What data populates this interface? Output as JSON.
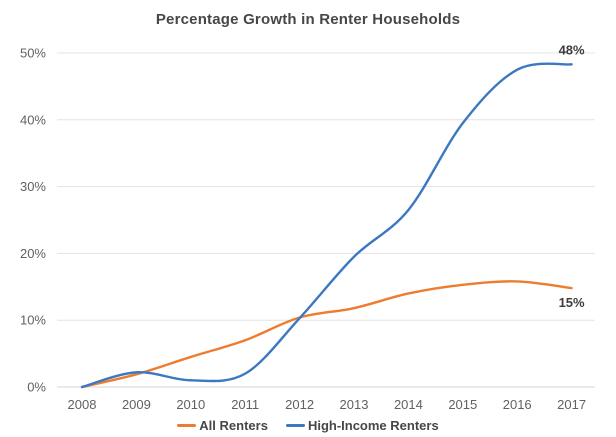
{
  "title": "Percentage Growth in Renter Households",
  "colors": {
    "all_renters": "#ED7C31",
    "high_income_renters": "#3B78C2",
    "gridline": "#E3E3E3",
    "axis_line": "#D6D6D6",
    "title_text": "#474747",
    "tick_text": "#616161",
    "data_label_text": "#3D3D3D",
    "background": "#FFFFFF"
  },
  "chart_data": {
    "type": "line",
    "title": "Percentage Growth in Renter Households",
    "x": [
      2008,
      2009,
      2010,
      2011,
      2012,
      2013,
      2014,
      2015,
      2016,
      2017
    ],
    "series": [
      {
        "name": "All Renters",
        "color": "#ED7C31",
        "values": [
          0,
          1.9,
          4.5,
          7,
          10.4,
          11.8,
          14,
          15.3,
          15.8,
          14.8
        ],
        "end_label": "15%",
        "end_label_position": "below"
      },
      {
        "name": "High-Income Renters",
        "color": "#3B78C2",
        "values": [
          0,
          2.2,
          1,
          2,
          10.3,
          19.5,
          26.5,
          39.5,
          47.5,
          48.3
        ],
        "end_label": "48%",
        "end_label_position": "above"
      }
    ],
    "xlabel": "",
    "ylabel": "",
    "ylim": [
      0,
      50
    ],
    "y_tick_interval": 10,
    "y_tick_labels": [
      "0%",
      "10%",
      "20%",
      "30%",
      "40%",
      "50%"
    ],
    "grid": "horizontal",
    "legend_position": "bottom",
    "line_style": "smooth"
  }
}
